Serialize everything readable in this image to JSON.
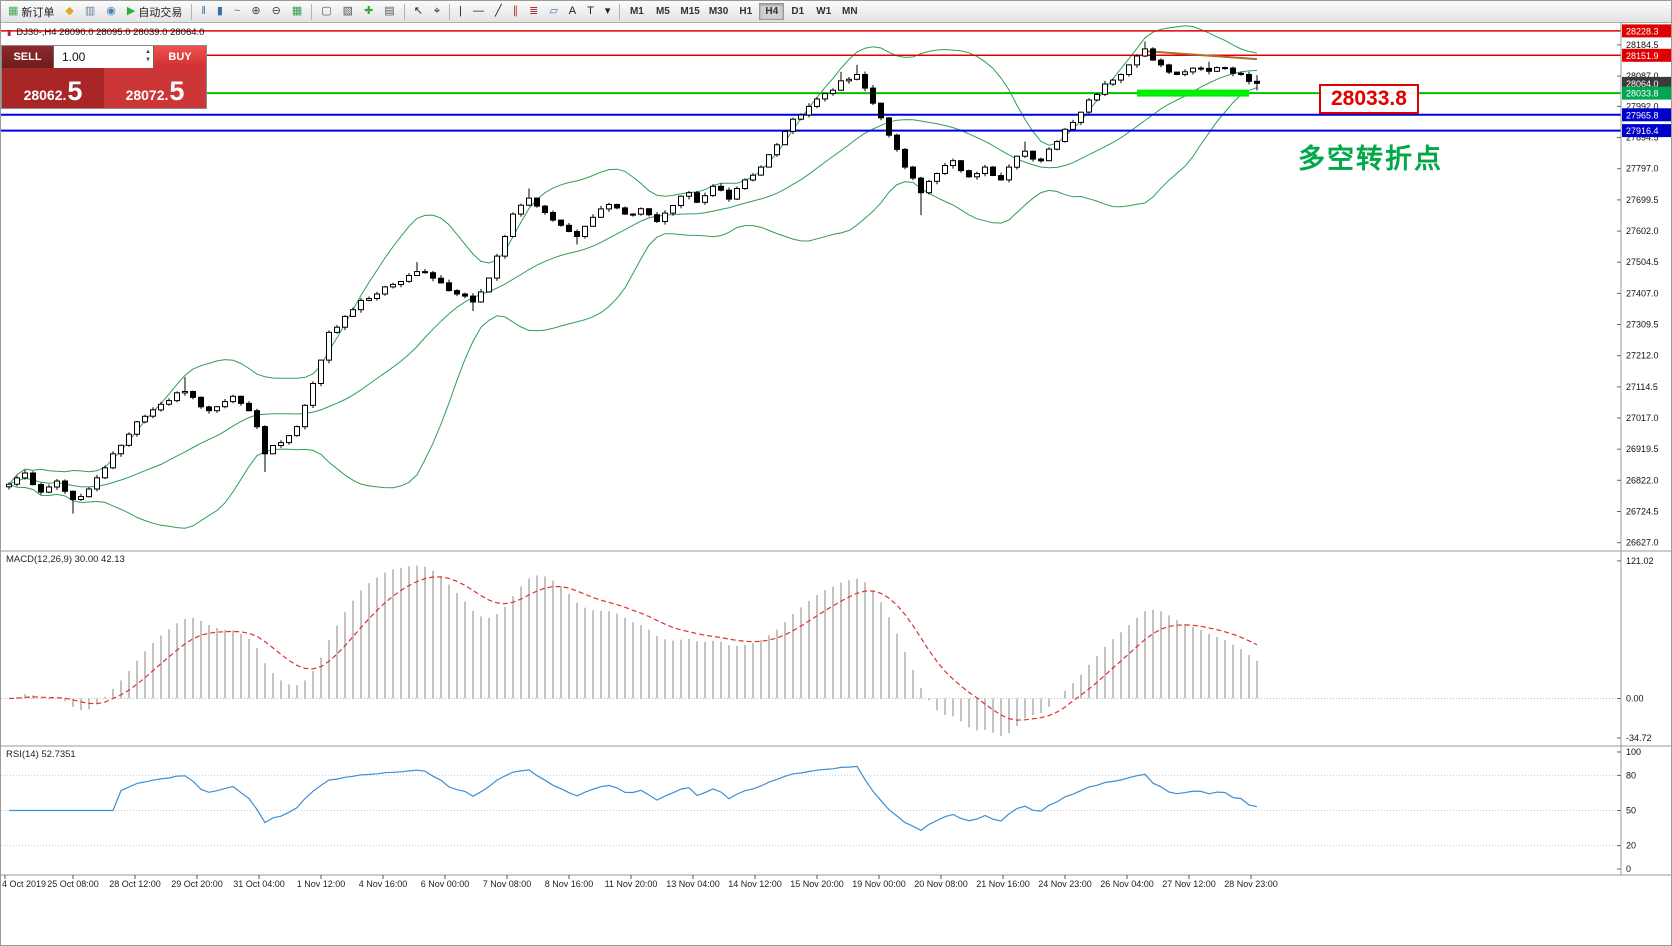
{
  "window": {
    "title": "MetaTrader chart DJ30- H4"
  },
  "toolbar": {
    "active_timeframe": "H4",
    "items": [
      {
        "t": "btn",
        "name": "new-order-button",
        "glyph": "▦",
        "glyph_color": "#3fae4c",
        "label": "新订单"
      },
      {
        "t": "icon",
        "name": "market-watch-icon",
        "glyph": "◆",
        "glyph_color": "#dfa927"
      },
      {
        "t": "icon",
        "name": "data-window-icon",
        "glyph": "▥",
        "glyph_color": "#6b7f9e"
      },
      {
        "t": "icon",
        "name": "navigator-icon",
        "glyph": "◉",
        "glyph_color": "#4a7dbf"
      },
      {
        "t": "btn",
        "name": "autotrading-button",
        "glyph": "▶",
        "glyph_color": "#2fae3f",
        "label": "自动交易"
      },
      {
        "t": "sep"
      },
      {
        "t": "icon",
        "name": "bar-chart-mode-icon",
        "glyph": "‖",
        "glyph_color": "#3d6fae"
      },
      {
        "t": "icon",
        "name": "candlestick-mode-icon",
        "glyph": "▮",
        "glyph_color": "#3d6fae"
      },
      {
        "t": "icon",
        "name": "line-chart-mode-icon",
        "glyph": "~",
        "glyph_color": "#3d6fae"
      },
      {
        "t": "icon",
        "name": "zoom-in-icon",
        "glyph": "⊕",
        "glyph_color": "#444444"
      },
      {
        "t": "icon",
        "name": "zoom-out-icon",
        "glyph": "⊖",
        "glyph_color": "#444444"
      },
      {
        "t": "icon",
        "name": "grid-icon",
        "glyph": "▦",
        "glyph_color": "#2f9e4f"
      },
      {
        "t": "sep"
      },
      {
        "t": "icon",
        "name": "tile-windows-icon",
        "glyph": "▢",
        "glyph_color": "#555555"
      },
      {
        "t": "icon",
        "name": "cascade-windows-icon",
        "glyph": "▧",
        "glyph_color": "#555555"
      },
      {
        "t": "icon",
        "name": "indicators-icon",
        "glyph": "✚",
        "glyph_color": "#2fae3f"
      },
      {
        "t": "icon",
        "name": "templates-icon",
        "glyph": "▤",
        "glyph_color": "#555555"
      },
      {
        "t": "sep"
      },
      {
        "t": "icon",
        "name": "cursor-icon",
        "glyph": "↖",
        "glyph_color": "#222222"
      },
      {
        "t": "icon",
        "name": "crosshair-icon",
        "glyph": "⌖",
        "glyph_color": "#222222"
      },
      {
        "t": "sep"
      },
      {
        "t": "icon",
        "name": "vertical-line-icon",
        "glyph": "|",
        "glyph_color": "#222222"
      },
      {
        "t": "icon",
        "name": "horizontal-line-icon",
        "glyph": "—",
        "glyph_color": "#222222"
      },
      {
        "t": "icon",
        "name": "trendline-icon",
        "glyph": "╱",
        "glyph_color": "#222222"
      },
      {
        "t": "icon",
        "name": "channel-icon",
        "glyph": "∥",
        "glyph_color": "#b03030"
      },
      {
        "t": "icon",
        "name": "fibonacci-icon",
        "glyph": "≣",
        "glyph_color": "#b03030"
      },
      {
        "t": "icon",
        "name": "shapes-icon",
        "glyph": "▱",
        "glyph_color": "#3d6fae"
      },
      {
        "t": "icon",
        "name": "text-icon",
        "glyph": "A",
        "glyph_color": "#222222"
      },
      {
        "t": "icon",
        "name": "text-label-icon",
        "glyph": "T",
        "glyph_color": "#222222"
      },
      {
        "t": "icon",
        "name": "arrows-tool-icon",
        "glyph": "▾",
        "glyph_color": "#222222"
      },
      {
        "t": "sep"
      },
      {
        "t": "tf",
        "name": "timeframe-m1",
        "label": "M1"
      },
      {
        "t": "tf",
        "name": "timeframe-m5",
        "label": "M5"
      },
      {
        "t": "tf",
        "name": "timeframe-m15",
        "label": "M15"
      },
      {
        "t": "tf",
        "name": "timeframe-m30",
        "label": "M30"
      },
      {
        "t": "tf",
        "name": "timeframe-h1",
        "label": "H1"
      },
      {
        "t": "tf",
        "name": "timeframe-h4",
        "label": "H4"
      },
      {
        "t": "tf",
        "name": "timeframe-d1",
        "label": "D1"
      },
      {
        "t": "tf",
        "name": "timeframe-w1",
        "label": "W1"
      },
      {
        "t": "tf",
        "name": "timeframe-mn",
        "label": "MN"
      }
    ]
  },
  "symbol_header": {
    "icon": "▮",
    "text": "DJ30-,H4  28090.0 28095.0 28039.0 28064.0"
  },
  "trade_widget": {
    "sell_label": "SELL",
    "buy_label": "BUY",
    "volume": "1.00",
    "spin_up": "▲",
    "spin_down": "▼",
    "sell_price_small": "28062.",
    "sell_price_big": "5",
    "buy_price_small": "28072.",
    "buy_price_big": "5"
  },
  "annotations": {
    "price_callout": "28033.8",
    "turning_point": "多空转折点"
  },
  "price_axis": {
    "regular": [
      "28184.5",
      "28087.0",
      "27992.0",
      "27894.5",
      "27797.0",
      "27699.5",
      "27602.0",
      "27504.5",
      "27407.0",
      "27309.5",
      "27212.0",
      "27114.5",
      "27017.0",
      "26919.5",
      "26822.0",
      "26724.5",
      "26627.0"
    ],
    "special": [
      {
        "value": "28228.3",
        "bg": "#e00000"
      },
      {
        "value": "28151.9",
        "bg": "#e00000"
      },
      {
        "value": "28064.0",
        "bg": "#3a3a3a"
      },
      {
        "value": "28033.8",
        "bg": "#00a651"
      },
      {
        "value": "27965.8",
        "bg": "#0000cc"
      },
      {
        "value": "27916.4",
        "bg": "#0000cc"
      }
    ]
  },
  "indicators": {
    "macd_label": "MACD(12,26,9) 30.00 42.13",
    "macd_axis": [
      {
        "text": "121.02",
        "value": 121.02
      },
      {
        "text": "0.00",
        "value": 0
      },
      {
        "text": "-34.72",
        "value": -34.72
      }
    ],
    "macd_histogram_color": "#c2c2c2",
    "macd_signal_color": "#e03030",
    "rsi_label": "RSI(14) 52.7351",
    "rsi_axis": [
      {
        "text": "100",
        "value": 100
      },
      {
        "text": "80",
        "value": 80
      },
      {
        "text": "50",
        "value": 50
      },
      {
        "text": "20",
        "value": 20
      },
      {
        "text": "0",
        "value": 0
      }
    ],
    "rsi_levels": [
      80,
      50,
      20
    ],
    "rsi_color": "#3e8fd4"
  },
  "time_axis": {
    "labels": [
      "4 Oct 2019",
      "25 Oct 08:00",
      "28 Oct 12:00",
      "29 Oct 20:00",
      "31 Oct 04:00",
      "1 Nov 12:00",
      "4 Nov 16:00",
      "6 Nov 00:00",
      "7 Nov 08:00",
      "8 Nov 16:00",
      "11 Nov 20:00",
      "13 Nov 04:00",
      "14 Nov 12:00",
      "15 Nov 20:00",
      "19 Nov 00:00",
      "20 Nov 08:00",
      "21 Nov 16:00",
      "24 Nov 23:00",
      "26 Nov 04:00",
      "27 Nov 12:00",
      "28 Nov 23:00"
    ]
  },
  "chart_data": {
    "type": "candlestick",
    "symbol": "DJ30-",
    "timeframe": "H4",
    "ohlc_quote": {
      "open": 28090.0,
      "high": 28095.0,
      "low": 28039.0,
      "close": 28064.0
    },
    "bid": 28062.5,
    "ask": 28072.5,
    "num_candles": 157,
    "price_range_visible": [
      26627.0,
      28228.3
    ],
    "style": {
      "bull": "#ffffff",
      "bear": "#000000",
      "wick": "#000000"
    },
    "price_anchors": [
      [
        0,
        26810,
        null,
        null
      ],
      [
        2,
        26845,
        null,
        null
      ],
      [
        4,
        26785,
        null,
        null
      ],
      [
        6,
        26820,
        null,
        null
      ],
      [
        8,
        26762,
        null,
        26718
      ],
      [
        10,
        26795,
        null,
        null
      ],
      [
        13,
        26905,
        null,
        null
      ],
      [
        16,
        27005,
        null,
        null
      ],
      [
        19,
        27060,
        null,
        null
      ],
      [
        22,
        27100,
        27145,
        null
      ],
      [
        25,
        27040,
        null,
        null
      ],
      [
        28,
        27085,
        null,
        null
      ],
      [
        30,
        27040,
        null,
        null
      ],
      [
        31,
        26990,
        null,
        null
      ],
      [
        32,
        26905,
        null,
        26848
      ],
      [
        34,
        26940,
        null,
        null
      ],
      [
        36,
        26990,
        null,
        null
      ],
      [
        38,
        27125,
        null,
        null
      ],
      [
        40,
        27285,
        null,
        null
      ],
      [
        42,
        27335,
        null,
        null
      ],
      [
        44,
        27385,
        null,
        null
      ],
      [
        46,
        27405,
        null,
        null
      ],
      [
        48,
        27435,
        null,
        null
      ],
      [
        51,
        27475,
        27505,
        null
      ],
      [
        54,
        27440,
        null,
        null
      ],
      [
        56,
        27405,
        null,
        null
      ],
      [
        58,
        27380,
        null,
        27352
      ],
      [
        60,
        27455,
        null,
        null
      ],
      [
        62,
        27585,
        null,
        null
      ],
      [
        63,
        27655,
        null,
        null
      ],
      [
        65,
        27705,
        27735,
        null
      ],
      [
        67,
        27660,
        null,
        null
      ],
      [
        69,
        27620,
        null,
        null
      ],
      [
        71,
        27585,
        null,
        27560
      ],
      [
        73,
        27645,
        null,
        null
      ],
      [
        75,
        27685,
        null,
        null
      ],
      [
        77,
        27655,
        null,
        null
      ],
      [
        79,
        27672,
        null,
        null
      ],
      [
        81,
        27632,
        null,
        null
      ],
      [
        83,
        27682,
        null,
        null
      ],
      [
        85,
        27722,
        null,
        null
      ],
      [
        86,
        27692,
        null,
        null
      ],
      [
        88,
        27742,
        null,
        null
      ],
      [
        90,
        27702,
        null,
        null
      ],
      [
        92,
        27762,
        null,
        null
      ],
      [
        94,
        27802,
        null,
        null
      ],
      [
        96,
        27872,
        null,
        null
      ],
      [
        98,
        27952,
        null,
        null
      ],
      [
        100,
        27992,
        null,
        null
      ],
      [
        102,
        28032,
        null,
        null
      ],
      [
        104,
        28072,
        28100,
        null
      ],
      [
        106,
        28092,
        28122,
        null
      ],
      [
        108,
        28002,
        null,
        null
      ],
      [
        110,
        27902,
        null,
        null
      ],
      [
        112,
        27802,
        null,
        null
      ],
      [
        114,
        27722,
        null,
        27652
      ],
      [
        116,
        27782,
        null,
        null
      ],
      [
        118,
        27822,
        null,
        null
      ],
      [
        120,
        27772,
        null,
        null
      ],
      [
        122,
        27802,
        null,
        null
      ],
      [
        124,
        27762,
        null,
        null
      ],
      [
        125,
        27802,
        null,
        null
      ],
      [
        127,
        27852,
        27882,
        null
      ],
      [
        129,
        27822,
        null,
        null
      ],
      [
        131,
        27882,
        null,
        null
      ],
      [
        133,
        27942,
        null,
        null
      ],
      [
        135,
        28012,
        null,
        null
      ],
      [
        137,
        28062,
        null,
        null
      ],
      [
        139,
        28092,
        null,
        null
      ],
      [
        140,
        28122,
        null,
        null
      ],
      [
        142,
        28172,
        28195,
        null
      ],
      [
        144,
        28122,
        null,
        null
      ],
      [
        146,
        28092,
        null,
        null
      ],
      [
        148,
        28112,
        null,
        null
      ],
      [
        150,
        28102,
        28132,
        null
      ],
      [
        152,
        28112,
        null,
        null
      ],
      [
        154,
        28092,
        null,
        null
      ],
      [
        156,
        28064,
        28090,
        28042
      ]
    ],
    "lines": [
      {
        "price": 28228.3,
        "color": "#e00000",
        "width": 1.5
      },
      {
        "price": 28151.9,
        "color": "#e00000",
        "width": 1.5
      },
      {
        "price": 28033.8,
        "color": "#00c000",
        "width": 2
      },
      {
        "price": 27965.8,
        "color": "#0000e0",
        "width": 2
      },
      {
        "price": 27916.4,
        "color": "#0000e0",
        "width": 2
      }
    ],
    "highlight_segment": {
      "price": 28033.8,
      "from_candle": 141,
      "to_candle": 155,
      "color": "#00ee00",
      "thickness": 7
    },
    "trend_segment": {
      "from_candle": 142,
      "price_from": 28165,
      "to_candle": 156,
      "price_to": 28140,
      "color": "#b06a2a",
      "width": 2
    },
    "overlays": {
      "bollinger": {
        "period": 20,
        "deviation": 2,
        "color": "#2f9e55"
      }
    },
    "macd": {
      "fast": 12,
      "slow": 26,
      "signal": 9,
      "main_value": 30.0,
      "signal_value": 42.13
    },
    "rsi": {
      "period": 14,
      "value": 52.7351
    }
  }
}
